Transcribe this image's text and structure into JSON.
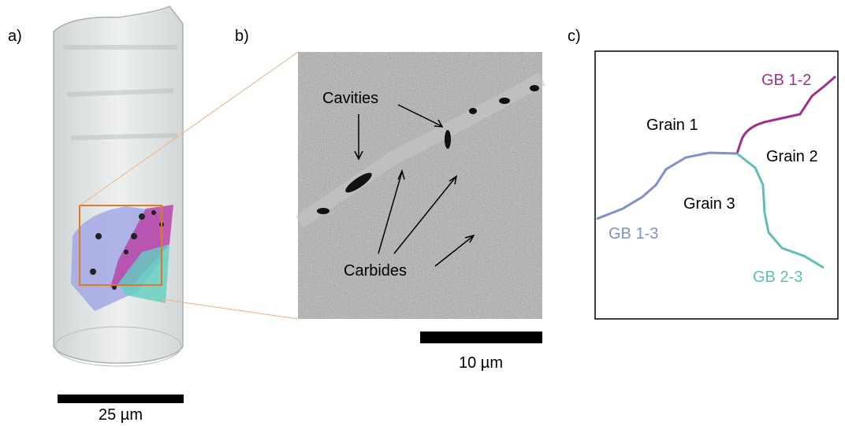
{
  "panels": [
    {
      "label": "a)",
      "scale_bar": "25 µm"
    },
    {
      "label": "b)",
      "scale_bar": "10 µm",
      "annotations": [
        "Cavities",
        "Carbides"
      ]
    },
    {
      "label": "c)",
      "grains": [
        "Grain 1",
        "Grain 2",
        "Grain 3"
      ],
      "boundaries": [
        "GB 1-2",
        "GB 1-3",
        "GB 2-3"
      ]
    }
  ]
}
